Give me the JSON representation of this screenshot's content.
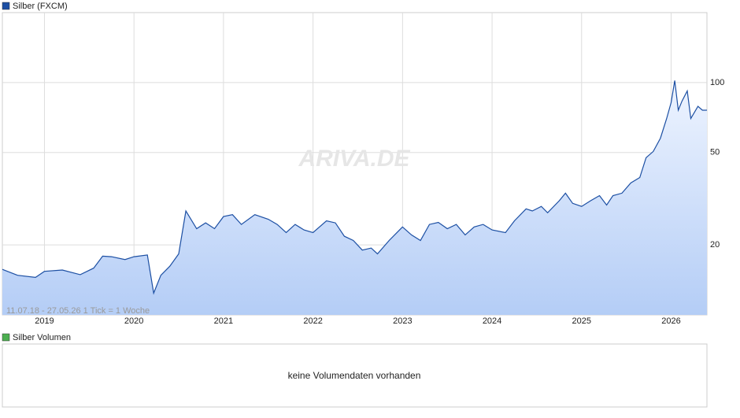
{
  "chart_data": {
    "type": "area",
    "title": "Silber (FXCM)",
    "annotation": "11.07.18 - 27.05.26   1 Tick = 1 Woche",
    "watermark": "ARIVA.DE",
    "x": [
      2018.53,
      2018.7,
      2018.9,
      2019.0,
      2019.2,
      2019.4,
      2019.55,
      2019.65,
      2019.75,
      2019.9,
      2020.0,
      2020.15,
      2020.22,
      2020.3,
      2020.4,
      2020.5,
      2020.58,
      2020.7,
      2020.8,
      2020.9,
      2021.0,
      2021.1,
      2021.2,
      2021.35,
      2021.5,
      2021.6,
      2021.7,
      2021.8,
      2021.9,
      2022.0,
      2022.15,
      2022.25,
      2022.35,
      2022.45,
      2022.55,
      2022.65,
      2022.72,
      2022.85,
      2023.0,
      2023.1,
      2023.2,
      2023.3,
      2023.4,
      2023.5,
      2023.6,
      2023.7,
      2023.8,
      2023.9,
      2024.0,
      2024.15,
      2024.25,
      2024.38,
      2024.45,
      2024.55,
      2024.62,
      2024.75,
      2024.82,
      2024.9,
      2025.0,
      2025.1,
      2025.2,
      2025.28,
      2025.35,
      2025.45,
      2025.55,
      2025.65,
      2025.72,
      2025.8,
      2025.88,
      2025.95,
      2026.0,
      2026.04,
      2026.08,
      2026.12,
      2026.18,
      2026.22,
      2026.3,
      2026.35,
      2026.4
    ],
    "series": [
      {
        "name": "Silber (FXCM)",
        "color": "#1c4fa3",
        "values": [
          15.7,
          14.8,
          14.5,
          15.4,
          15.6,
          14.9,
          15.9,
          17.9,
          17.8,
          17.3,
          17.8,
          18.1,
          12.4,
          14.8,
          16.2,
          18.3,
          28,
          23.5,
          24.9,
          23.5,
          26.5,
          27,
          24.5,
          27,
          25.8,
          24.5,
          22.6,
          24.5,
          23.2,
          22.6,
          25.4,
          24.9,
          21.8,
          20.9,
          19.0,
          19.4,
          18.3,
          20.9,
          23.9,
          22.1,
          20.9,
          24.5,
          25,
          23.5,
          24.5,
          22.1,
          23.9,
          24.5,
          23.2,
          22.6,
          25.4,
          28.6,
          28,
          29.3,
          27.5,
          31,
          33.4,
          30.2,
          29.3,
          31,
          32.6,
          29.7,
          32.6,
          33.4,
          37,
          39,
          47.5,
          50.5,
          57.6,
          70,
          82,
          102,
          76,
          83,
          92,
          70,
          79,
          76,
          76
        ]
      }
    ],
    "xlim": [
      2018.53,
      2026.4
    ],
    "xticks": [
      2019,
      2020,
      2021,
      2022,
      2023,
      2024,
      2025,
      2026
    ],
    "ylim": [
      10,
      200
    ],
    "yticks": [
      20,
      50,
      100
    ],
    "yscale": "log",
    "grid": true
  },
  "volume_panel": {
    "title": "Silber Volumen",
    "message": "keine Volumendaten vorhanden"
  }
}
